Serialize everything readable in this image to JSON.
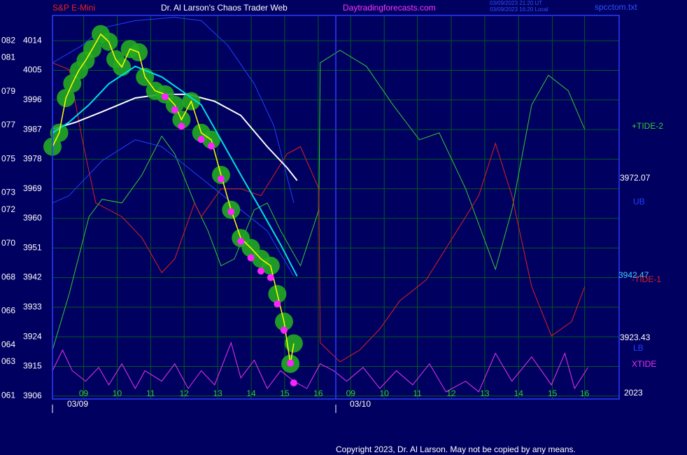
{
  "chart_data": {
    "type": "line",
    "title": "Dr. Al Larson's Chaos Trader Web",
    "subtitle": "S&P E-Mini",
    "annotations": [
      "Daytradingforecasts.com",
      "03/09/2023 21:20 UT",
      "03/09/2023 16:20 Local",
      "spcctom.txt",
      "3972.07",
      "3942.47",
      "3923.43",
      "2023",
      "03/09",
      "03/10",
      "Copyright 2023, Dr. Al Larson. May not be copied by any means."
    ],
    "xlim": [
      8.07,
      24.98
    ],
    "xticks": [
      {
        "value": 9,
        "label": "09"
      },
      10,
      11,
      12,
      13,
      14,
      15,
      16,
      {
        "value": 16.97,
        "label": "09"
      },
      {
        "value": 17.97,
        "label": "10"
      },
      {
        "value": 18.96,
        "label": "11"
      },
      {
        "value": 19.97,
        "label": "12"
      },
      {
        "value": 20.97,
        "label": "13"
      },
      {
        "value": 21.98,
        "label": "14"
      },
      {
        "value": 22.99,
        "label": "15"
      },
      {
        "value": 23.95,
        "label": "16"
      }
    ],
    "ylim": [
      3905.1,
      4021.7
    ],
    "yticks": [
      3906,
      3915,
      3924,
      3933,
      3942,
      3951,
      3960,
      3969,
      3978,
      3987,
      3996,
      4005,
      4014
    ],
    "y2lim": [
      60.8,
      83.5
    ],
    "y2ticks": [
      {
        "value": 61,
        "label": "061"
      },
      {
        "value": 63,
        "label": "063"
      },
      {
        "value": 64,
        "label": "064"
      },
      {
        "value": 66,
        "label": "066"
      },
      {
        "value": 68,
        "label": "068"
      },
      {
        "value": 70,
        "label": "070"
      },
      {
        "value": 72,
        "label": "072"
      },
      {
        "value": 73,
        "label": "073"
      },
      {
        "value": 75,
        "label": "075"
      },
      {
        "value": 77,
        "label": "077"
      },
      {
        "value": 79,
        "label": "079"
      },
      {
        "value": 81,
        "label": "081"
      },
      {
        "value": 82,
        "label": "082"
      }
    ],
    "grid": true,
    "grid_color": "#005a20",
    "series": [
      {
        "name": "+TIDE-2",
        "color": "#33cc33",
        "x": [
          8.07,
          8.57,
          9.16,
          9.55,
          10.14,
          10.74,
          11.33,
          11.72,
          12.31,
          12.71,
          13.1,
          13.5,
          14.09,
          14.48,
          14.88,
          15.47,
          16.02,
          16.06,
          16.65,
          17.44,
          18.23,
          19.02,
          19.61,
          20.4,
          21.29,
          21.78,
          22.37,
          22.87,
          23.46,
          23.95
        ],
        "values": [
          3920,
          3937.1,
          3960.5,
          3965.8,
          3964.7,
          3973.2,
          3985,
          3979.6,
          3964.7,
          3956.2,
          3945.6,
          3947.7,
          3962.6,
          3964.7,
          3956.2,
          3945.6,
          3962.6,
          4007.3,
          4011.1,
          4006.2,
          3994.5,
          3983.9,
          3986,
          3969,
          3944.5,
          3962.6,
          3994.5,
          4003.5,
          3998.8,
          3987.1
        ]
      },
      {
        "name": "-TIDE-1",
        "color": "#dd2020",
        "x": [
          8.07,
          8.57,
          8.96,
          9.36,
          10.14,
          10.74,
          11.33,
          11.72,
          12.31,
          12.51,
          13.1,
          13.69,
          14.29,
          14.68,
          15.07,
          15.47,
          16.02,
          16.06,
          16.65,
          17.24,
          17.84,
          18.43,
          19.22,
          20.01,
          20.79,
          21.29,
          21.78,
          22.37,
          22.96,
          23.56,
          23.95
        ],
        "values": [
          4007.3,
          4005.2,
          3983.9,
          3964.7,
          3960.5,
          3954.1,
          3943.5,
          3947.7,
          3964.7,
          3960.5,
          3969,
          3969,
          3966.9,
          3973.2,
          3979.6,
          3981.8,
          3969,
          3922.2,
          3916.4,
          3920,
          3926.4,
          3934.9,
          3941.3,
          3954.1,
          3966.9,
          3982.8,
          3966.9,
          3939.2,
          3924.3,
          3928.6,
          3939.2
        ]
      },
      {
        "name": "XTIDE",
        "color": "#ee33ee",
        "x": [
          8.07,
          8.37,
          8.66,
          9.06,
          9.45,
          9.75,
          10.14,
          10.54,
          10.83,
          11.33,
          11.72,
          12.12,
          12.51,
          12.91,
          13.4,
          13.69,
          14.09,
          14.48,
          14.88,
          15.27,
          15.66,
          16.06,
          16.46,
          16.85,
          17.34,
          17.84,
          18.33,
          18.82,
          19.32,
          19.81,
          20.4,
          20.79,
          21.29,
          21.78,
          22.37,
          22.96,
          23.36,
          23.65,
          24.05
        ],
        "values": [
          3913.7,
          3920,
          3913.7,
          3910.5,
          3914.7,
          3909.4,
          3915.8,
          3908.3,
          3913.7,
          3910.5,
          3915.8,
          3908.3,
          3913.7,
          3909.4,
          3922.2,
          3911.5,
          3916.9,
          3908.3,
          3913.7,
          3910.5,
          3908.3,
          3915.8,
          3913.7,
          3910.5,
          3914.7,
          3908.3,
          3913.7,
          3909.4,
          3915.8,
          3907.3,
          3910.5,
          3907.3,
          3919,
          3910.5,
          3917.9,
          3909.4,
          3919,
          3908.3,
          3914.7
        ]
      },
      {
        "name": "UB",
        "color": "#2040ff",
        "x": [
          8.07,
          8.96,
          9.55,
          10.54,
          11.72,
          12.51,
          13.3,
          14.09,
          14.68,
          15.27
        ],
        "values": [
          4007.3,
          4012.6,
          4017.9,
          4020.1,
          4021.1,
          4020.1,
          4012.6,
          4000.9,
          3988.1,
          3964.7
        ]
      },
      {
        "name": "LB",
        "color": "#2040ff",
        "x": [
          8.07,
          8.56,
          9.55,
          10.54,
          11.33,
          12.12,
          12.91,
          13.69,
          14.48,
          15.27
        ],
        "values": [
          3964.7,
          3966.9,
          3977.5,
          3983.9,
          3981.8,
          3975.4,
          3969,
          3962.6,
          3956.2,
          3942.4
        ]
      },
      {
        "color": "#ffffff",
        "width": 2,
        "x": [
          8.07,
          8.76,
          9.55,
          10.54,
          11.33,
          12.12,
          12.91,
          13.69,
          14.48,
          15.07,
          15.37
        ],
        "values": [
          3987.1,
          3989.2,
          3992.4,
          3996.6,
          3997.7,
          3997.7,
          3995.6,
          3991.3,
          3981.8,
          3975.4,
          3971.5
        ]
      },
      {
        "color": "#22aa22",
        "marker": "ring",
        "marker_color": "#22aa22",
        "line": false,
        "x": [
          8.07,
          8.27,
          8.47,
          8.66,
          8.86,
          9.06,
          9.26,
          9.51,
          9.75,
          9.95,
          10.14,
          10.38,
          10.64,
          10.83,
          11.13,
          11.43,
          11.72,
          11.92,
          12.21,
          12.51,
          12.81,
          13.1,
          13.4,
          13.69,
          13.99,
          14.29,
          14.58,
          14.78,
          14.98,
          15.17,
          15.27
        ],
        "values": [
          3981.8,
          3986,
          3996.6,
          4001,
          4005,
          4008,
          4011.5,
          4016,
          4013.7,
          4008.4,
          4006,
          4011.5,
          4010.5,
          4003,
          3998.8,
          3997.7,
          3994.5,
          3990,
          3995.6,
          3986,
          3983.9,
          3973.2,
          3962.6,
          3954,
          3951,
          3947.7,
          3945.6,
          3937,
          3928.6,
          3915.8,
          3922
        ]
      },
      {
        "color": "#00e0e0",
        "width": 2,
        "x": [
          8.07,
          8.56,
          9.16,
          9.75,
          10.54,
          11.33,
          11.92,
          12.51,
          13.1,
          13.69,
          14.29,
          14.88,
          15.37
        ],
        "values": [
          3986,
          3989.2,
          3994.5,
          4000.9,
          4006.2,
          4003,
          3998.8,
          3994.5,
          3983.9,
          3973.2,
          3962.6,
          3952,
          3942.4
        ]
      },
      {
        "color": "#ffff00",
        "width": 1.5,
        "x": [
          8.07,
          8.27,
          8.47,
          8.66,
          8.86,
          9.06,
          9.26,
          9.51,
          9.75,
          9.95,
          10.14,
          10.38,
          10.64,
          10.83,
          11.13,
          11.43,
          11.72,
          11.92,
          12.21,
          12.51,
          12.81,
          13.1,
          13.4,
          13.69,
          13.99,
          14.29,
          14.58,
          14.78,
          14.98,
          15.17,
          15.27
        ],
        "values": [
          3981.8,
          3986,
          3996.6,
          4001,
          4005,
          4008,
          4011.5,
          4016,
          4013.7,
          4008.4,
          4006,
          4011.5,
          4010.5,
          4003,
          3998.8,
          3997.7,
          3994.5,
          3990,
          3995.6,
          3986,
          3983.9,
          3973.2,
          3962.6,
          3954,
          3951,
          3947.7,
          3945.6,
          3937,
          3928.6,
          3915.8,
          3922
        ]
      },
      {
        "color": "#ff22ff",
        "marker": "dot",
        "marker_color": "#ff22ff",
        "line": false,
        "x": [
          11.43,
          11.72,
          11.92,
          12.51,
          12.81,
          13.1,
          13.4,
          13.69,
          13.99,
          14.29,
          14.58,
          14.78,
          14.98,
          15.17,
          15.27
        ],
        "values": [
          3997,
          3993,
          3988,
          3984,
          3982,
          3972,
          3962,
          3953,
          3948,
          3944,
          3942,
          3934,
          3926,
          3916,
          3910
        ]
      }
    ]
  }
}
